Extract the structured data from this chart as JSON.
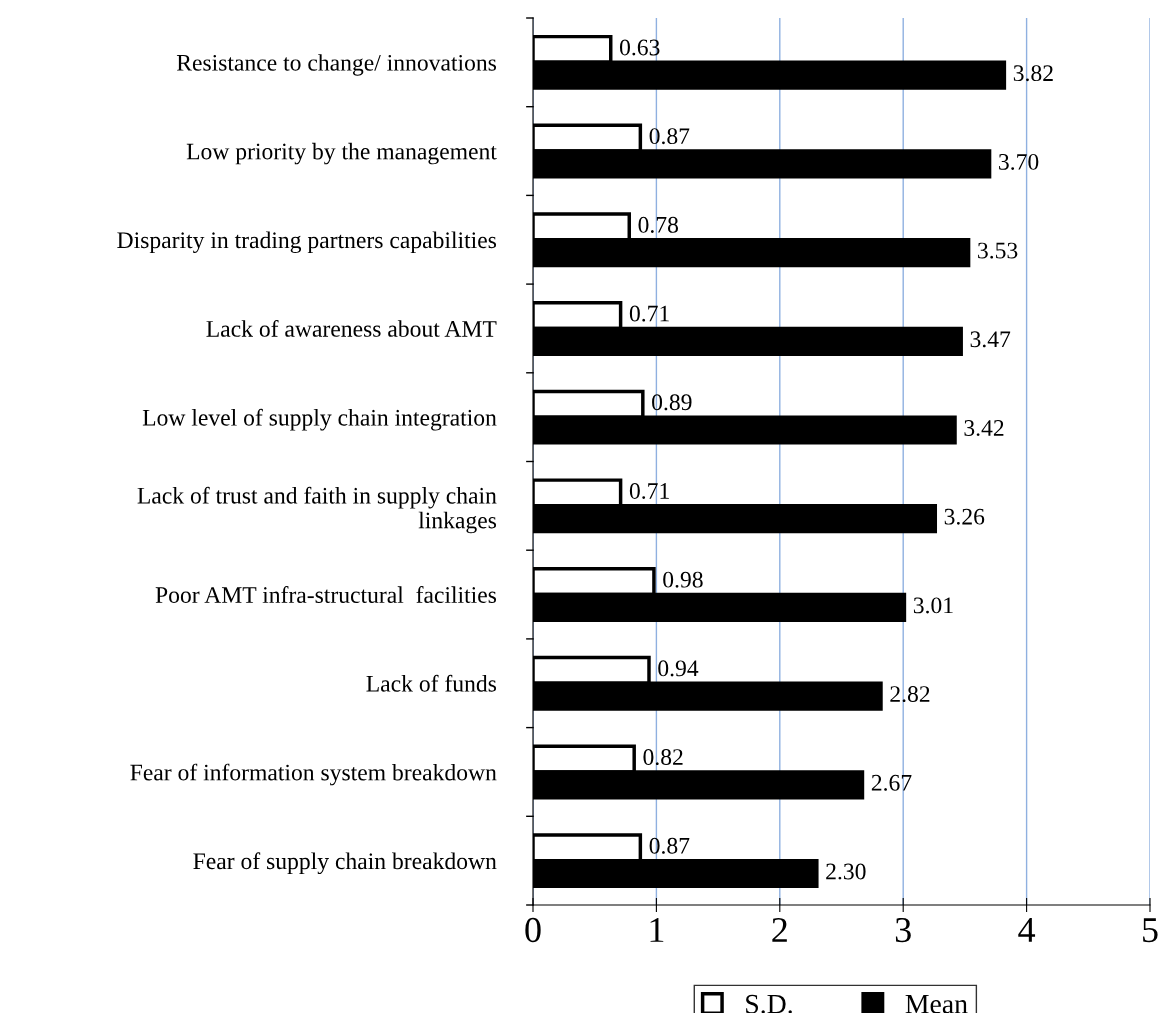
{
  "chart_data": {
    "type": "bar",
    "orientation": "horizontal",
    "categories": [
      "Resistance to change/ innovations",
      "Low priority by the management",
      "Disparity in trading partners capabilities",
      "Lack of awareness about AMT",
      "Low level of supply chain integration",
      "Lack of trust and faith in supply chain\nlinkages",
      "Poor AMT infra-structural  facilities",
      "Lack of funds",
      "Fear of information system breakdown",
      "Fear of supply chain breakdown"
    ],
    "series": [
      {
        "name": "S.D.",
        "color": "#ffffff",
        "values": [
          0.63,
          0.87,
          0.78,
          0.71,
          0.89,
          0.71,
          0.98,
          0.94,
          0.82,
          0.87
        ],
        "value_labels": [
          "0.63",
          "0.87",
          "0.78",
          "0.71",
          "0.89",
          "0.71",
          "0.98",
          "0.94",
          "0.82",
          "0.87"
        ]
      },
      {
        "name": "Mean",
        "color": "#000000",
        "values": [
          3.82,
          3.7,
          3.53,
          3.47,
          3.42,
          3.26,
          3.01,
          2.82,
          2.67,
          2.3
        ],
        "value_labels": [
          "3.82",
          "3.70",
          "3.53",
          "3.47",
          "3.42",
          "3.26",
          "3.01",
          "2.82",
          "2.67",
          "2.30"
        ]
      }
    ],
    "xlim": [
      0,
      5
    ],
    "xticks": [
      0,
      1,
      2,
      3,
      4,
      5
    ],
    "grid": "x",
    "legend": "bottom"
  }
}
